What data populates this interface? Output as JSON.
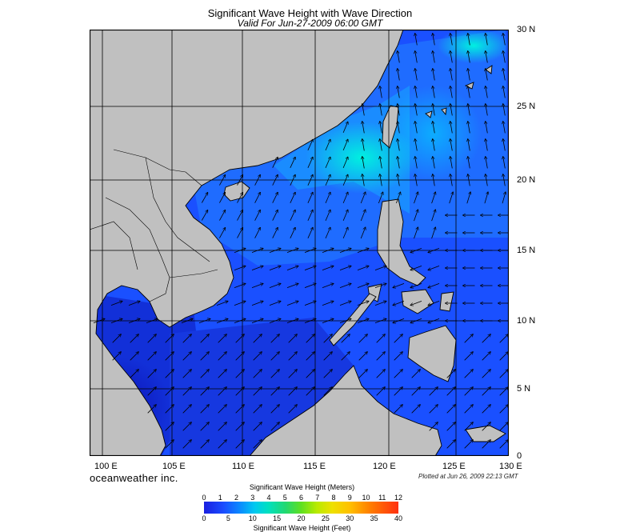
{
  "title": "Significant Wave Height with Wave Direction",
  "subtitle": "Valid For Jun-27-2009 06:00 GMT",
  "lat_labels": [
    "30 N",
    "25 N",
    "20 N",
    "15 N",
    "10 N",
    "5 N",
    "0"
  ],
  "lon_labels": [
    "100 E",
    "105 E",
    "110 E",
    "115 E",
    "120 E",
    "125 E",
    "130 E"
  ],
  "brand": "oceanweather inc.",
  "plotted": "Plotted at Jun 26, 2009 22:13 GMT",
  "colorbar": {
    "title_meters": "Significant Wave Height (Meters)",
    "title_feet": "Significant Wave Height (Feet)",
    "meters_ticks": [
      "0",
      "1",
      "2",
      "3",
      "4",
      "5",
      "6",
      "7",
      "8",
      "9",
      "10",
      "11",
      "12"
    ],
    "feet_ticks": [
      "0",
      "5",
      "10",
      "15",
      "20",
      "25",
      "30",
      "35",
      "40"
    ]
  },
  "colors": {
    "land": "#c0c0c0",
    "sea_low": "#0a10c0",
    "sea_mid": "#1a4cff",
    "sea_high": "#00e6d0",
    "grid": "#000000"
  },
  "map_extent": {
    "lon_min": 99,
    "lon_max": 130,
    "lat_min": 0,
    "lat_max": 30
  }
}
